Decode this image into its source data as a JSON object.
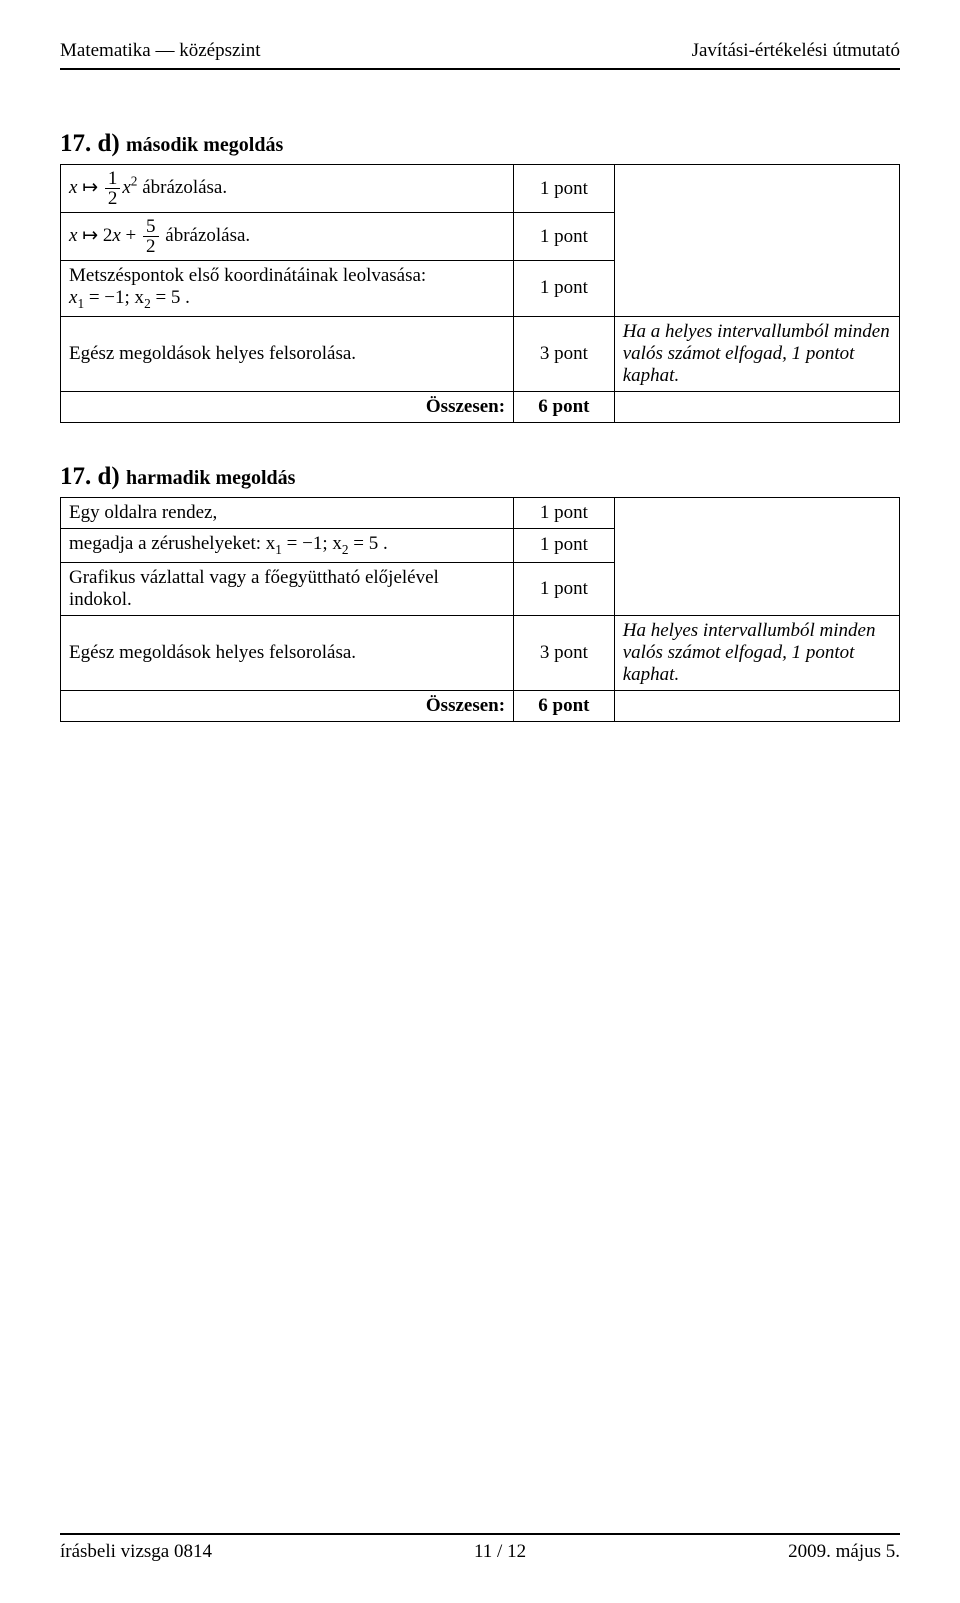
{
  "header": {
    "left": "Matematika — középszint",
    "right": "Javítási-értékelési útmutató"
  },
  "section1": {
    "number": "17. d)",
    "subtitle": "második megoldás",
    "rows": {
      "r1": {
        "desc_suffix": " ábrázolása.",
        "pts": "1 pont"
      },
      "r2": {
        "desc_suffix": " ábrázolása.",
        "pts": "1 pont"
      },
      "r3": {
        "desc_line1": "Metszéspontok első koordinátáinak leolvasása:",
        "desc_line2_prefix": "x",
        "desc_line2_mid": " = −1;  x",
        "desc_line2_suffix": " = 5 .",
        "pts": "1 pont"
      },
      "r4": {
        "desc": "Egész megoldások helyes felsorolása.",
        "pts": "3 pont",
        "note": "Ha a helyes intervallumból minden valós számot elfogad, 1 pontot kaphat."
      }
    },
    "total": {
      "label": "Összesen:",
      "pts": "6 pont"
    }
  },
  "section2": {
    "number": "17. d)",
    "subtitle": "harmadik megoldás",
    "rows": {
      "r1": {
        "desc": "Egy oldalra rendez,",
        "pts": "1 pont"
      },
      "r2": {
        "desc_prefix": "megadja a zérushelyeket:  x",
        "desc_mid": " = −1;  x",
        "desc_suffix": " = 5 .",
        "pts": "1 pont"
      },
      "r3": {
        "desc": "Grafikus vázlattal vagy a főegyüttható előjelével indokol.",
        "pts": "1 pont"
      },
      "r4": {
        "desc": "Egész megoldások helyes felsorolása.",
        "pts": "3 pont",
        "note": "Ha helyes intervallumból minden valós számot elfogad, 1 pontot kaphat."
      }
    },
    "total": {
      "label": "Összesen:",
      "pts": "6 pont"
    }
  },
  "footer": {
    "left": "írásbeli vizsga 0814",
    "center": "11 / 12",
    "right": "2009. május 5."
  },
  "colors": {
    "text": "#000000",
    "background": "#ffffff",
    "border": "#000000"
  },
  "fonts": {
    "body_family": "Times New Roman",
    "body_size_pt": 14,
    "title_size_pt": 19
  }
}
